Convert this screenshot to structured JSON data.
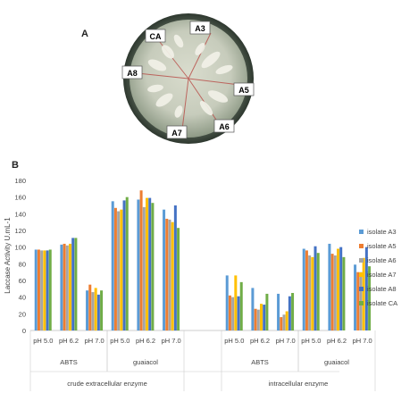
{
  "panels": {
    "a": "A",
    "b": "B"
  },
  "plate": {
    "labels": [
      "CA",
      "A3",
      "A8",
      "A5",
      "A7",
      "A6"
    ]
  },
  "chart_data": {
    "type": "bar",
    "ylabel": "Laccase Activity U.mL-1",
    "ylim": [
      0,
      180
    ],
    "yticks": [
      0,
      20,
      40,
      60,
      80,
      100,
      120,
      140,
      160,
      180
    ],
    "grid": false,
    "legend_position": "right",
    "categories": [
      "pH 5.0",
      "pH 6.2",
      "pH 7.0",
      "pH 5.0",
      "pH 6.2",
      "pH 7.0",
      "pH 5.0",
      "pH 6.2",
      "pH 7.0",
      "pH 5.0",
      "pH 6.2",
      "pH 7.0"
    ],
    "substrates": [
      {
        "label": "ABTS",
        "span": [
          0,
          2
        ]
      },
      {
        "label": "guaiacol",
        "span": [
          3,
          5
        ]
      },
      {
        "label": "ABTS",
        "span": [
          6,
          8
        ]
      },
      {
        "label": "guaiacol",
        "span": [
          9,
          11
        ]
      }
    ],
    "groups": [
      {
        "label": "crude extracellular enzyme",
        "span": [
          0,
          5
        ]
      },
      {
        "label": "intracellular enzyme",
        "span": [
          6,
          11
        ]
      }
    ],
    "series": [
      {
        "name": "isolate A3",
        "color": "#5b9bd5",
        "values": [
          97,
          103,
          48,
          155,
          157,
          145,
          66,
          51,
          44,
          98,
          104,
          79
        ]
      },
      {
        "name": "isolate A5",
        "color": "#ed7d31",
        "values": [
          97,
          104,
          55,
          147,
          168,
          134,
          42,
          26,
          16,
          96,
          92,
          70
        ]
      },
      {
        "name": "isolate A6",
        "color": "#a5a5a5",
        "values": [
          96,
          102,
          46,
          143,
          148,
          133,
          40,
          25,
          19,
          90,
          90,
          70
        ]
      },
      {
        "name": "isolate A7",
        "color": "#ffc000",
        "values": [
          96,
          104,
          51,
          145,
          159,
          130,
          66,
          32,
          23,
          88,
          98,
          87
        ]
      },
      {
        "name": "isolate A8",
        "color": "#4472c4",
        "values": [
          96,
          111,
          43,
          156,
          159,
          150,
          41,
          31,
          41,
          101,
          100,
          100
        ]
      },
      {
        "name": "isolate CA",
        "color": "#70ad47",
        "values": [
          97,
          111,
          48,
          160,
          153,
          123,
          58,
          44,
          45,
          93,
          88,
          77
        ]
      }
    ]
  }
}
